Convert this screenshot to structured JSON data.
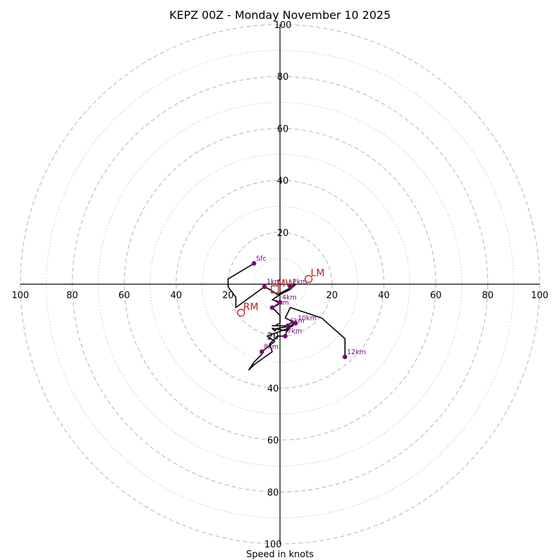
{
  "chart_data": {
    "type": "hodograph",
    "title": "KEPZ 00Z - Monday November 10 2025",
    "xlabel": "Speed in knots",
    "range": [
      -100,
      100
    ],
    "ring_major": [
      20,
      40,
      60,
      80,
      100
    ],
    "ring_minor": [
      10,
      30,
      50,
      70,
      90
    ],
    "tick_labels_top": [
      "100",
      "80",
      "60",
      "40",
      "20"
    ],
    "tick_labels_bottom": [
      "20",
      "40",
      "60",
      "80",
      "100"
    ],
    "tick_labels_left": [
      "100",
      "80",
      "60",
      "40",
      "20"
    ],
    "tick_labels_right": [
      "20",
      "40",
      "60",
      "80",
      "100"
    ],
    "profile_trace": [
      [
        -10,
        8
      ],
      [
        -20,
        2
      ],
      [
        -20,
        -1
      ],
      [
        -17,
        -5
      ],
      [
        -17,
        -9
      ],
      [
        -6,
        -1
      ],
      [
        -4,
        -2
      ],
      [
        -1,
        -4
      ],
      [
        1,
        -3
      ],
      [
        3,
        -2
      ],
      [
        4,
        -1
      ],
      [
        6,
        0
      ],
      [
        4,
        -2
      ],
      [
        0,
        -4
      ],
      [
        -3,
        -6
      ],
      [
        0,
        -7
      ],
      [
        -1,
        -8
      ],
      [
        -3,
        -9
      ],
      [
        0,
        -12
      ],
      [
        0,
        -15
      ],
      [
        -2,
        -16
      ],
      [
        -3,
        -16
      ],
      [
        3,
        -16
      ],
      [
        4,
        -15
      ],
      [
        6,
        -15
      ],
      [
        4,
        -16
      ],
      [
        3,
        -18
      ],
      [
        -3,
        -17
      ],
      [
        -2,
        -18
      ],
      [
        -1,
        -17
      ],
      [
        5,
        -16
      ],
      [
        3,
        -17
      ],
      [
        -5,
        -20
      ],
      [
        -2,
        -22
      ],
      [
        -7,
        -26
      ],
      [
        -7,
        -27
      ],
      [
        -10,
        -30
      ],
      [
        -12,
        -33
      ],
      [
        -10,
        -31
      ],
      [
        -3,
        -26
      ],
      [
        -4,
        -23
      ],
      [
        -1,
        -20
      ],
      [
        2,
        -20
      ],
      [
        3,
        -17
      ],
      [
        6,
        -15
      ],
      [
        2,
        -13
      ],
      [
        4,
        -9
      ],
      [
        16,
        -13
      ],
      [
        25,
        -21
      ],
      [
        25,
        -28
      ]
    ],
    "height_points": [
      {
        "label": "Sfc",
        "u": -10,
        "v": 8
      },
      {
        "label": "1km",
        "u": -6,
        "v": -1
      },
      {
        "label": "2km",
        "u": 4,
        "v": -1
      },
      {
        "label": "3km",
        "u": -3,
        "v": -9
      },
      {
        "label": "4km",
        "u": 0,
        "v": -7
      },
      {
        "label": "6km",
        "u": 3,
        "v": -16
      },
      {
        "label": "7km",
        "u": 2,
        "v": -20
      },
      {
        "label": "8km",
        "u": -7,
        "v": -26
      },
      {
        "label": "10km",
        "u": 6,
        "v": -15
      },
      {
        "label": "12km",
        "u": 25,
        "v": -28
      }
    ],
    "storm_motion": [
      {
        "label": "LM",
        "u": 11,
        "v": 2,
        "marker": "circle"
      },
      {
        "label": "RM",
        "u": -15,
        "v": -11,
        "marker": "circle"
      },
      {
        "label": "MW",
        "u": -2,
        "v": -2,
        "marker": "square"
      }
    ],
    "colors": {
      "trace": "#000000",
      "points": "#800080",
      "storm_motion": "#b22222",
      "ring": "#bfbfbf",
      "axis": "#000000"
    }
  }
}
